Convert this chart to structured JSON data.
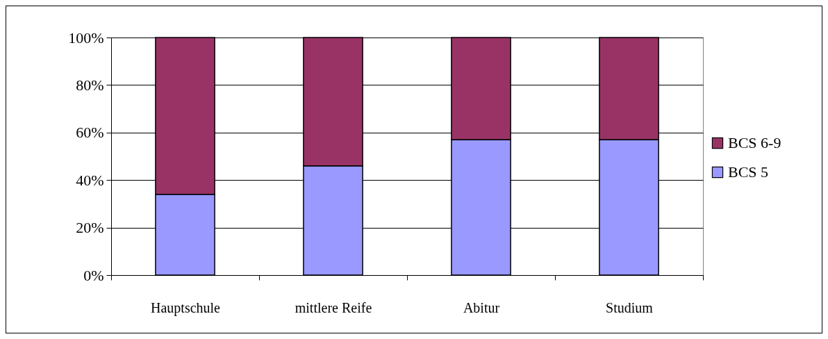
{
  "chart_data": {
    "type": "bar",
    "stacked": true,
    "categories": [
      "Hauptschule",
      "mittlere Reife",
      "Abitur",
      "Studium"
    ],
    "series": [
      {
        "name": "BCS 5",
        "color": "#9999ff",
        "values": [
          34,
          46,
          57,
          57
        ]
      },
      {
        "name": "BCS 6-9",
        "color": "#993366",
        "values": [
          66,
          54,
          43,
          43
        ]
      }
    ],
    "ylim": [
      0,
      100
    ],
    "yticks": [
      {
        "value": 0,
        "label": "0%"
      },
      {
        "value": 20,
        "label": "20%"
      },
      {
        "value": 40,
        "label": "40%"
      },
      {
        "value": 60,
        "label": "60%"
      },
      {
        "value": 80,
        "label": "80%"
      },
      {
        "value": 100,
        "label": "100%"
      }
    ],
    "grid": "y",
    "legend": "right"
  }
}
